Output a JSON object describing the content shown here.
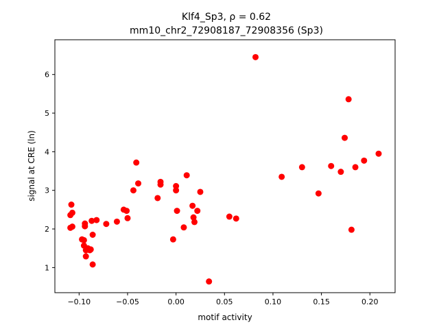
{
  "chart_data": {
    "type": "scatter",
    "title_line1": "Klf4_Sp3, ρ = 0.62",
    "title_line2": "mm10_chr2_72908187_72908356 (Sp3)",
    "xlabel": "motif activity",
    "ylabel": "signal at CRE (ln)",
    "xlim": [
      -0.125,
      0.226
    ],
    "ylim": [
      0.35,
      6.9
    ],
    "xticks": [
      -0.1,
      -0.05,
      0.0,
      0.05,
      0.1,
      0.15,
      0.2
    ],
    "xtick_labels": [
      "−0.10",
      "−0.05",
      "0.00",
      "0.05",
      "0.10",
      "0.15",
      "0.20"
    ],
    "yticks": [
      1,
      2,
      3,
      4,
      5,
      6
    ],
    "ytick_labels": [
      "1",
      "2",
      "3",
      "4",
      "5",
      "6"
    ],
    "grid": false,
    "marker_color": "#ff0000",
    "points": [
      {
        "x": 0.082,
        "y": 6.45
      },
      {
        "x": 0.178,
        "y": 5.36
      },
      {
        "x": 0.174,
        "y": 4.36
      },
      {
        "x": 0.209,
        "y": 3.95
      },
      {
        "x": 0.194,
        "y": 3.77
      },
      {
        "x": 0.16,
        "y": 3.63
      },
      {
        "x": 0.13,
        "y": 3.6
      },
      {
        "x": 0.185,
        "y": 3.6
      },
      {
        "x": 0.17,
        "y": 3.48
      },
      {
        "x": 0.109,
        "y": 3.35
      },
      {
        "x": 0.147,
        "y": 2.92
      },
      {
        "x": 0.181,
        "y": 1.98
      },
      {
        "x": -0.041,
        "y": 3.72
      },
      {
        "x": 0.011,
        "y": 3.39
      },
      {
        "x": -0.016,
        "y": 3.22
      },
      {
        "x": -0.039,
        "y": 3.18
      },
      {
        "x": -0.016,
        "y": 3.15
      },
      {
        "x": 0.0,
        "y": 3.11
      },
      {
        "x": 0.0,
        "y": 3.0
      },
      {
        "x": -0.044,
        "y": 3.0
      },
      {
        "x": 0.025,
        "y": 2.96
      },
      {
        "x": -0.019,
        "y": 2.8
      },
      {
        "x": 0.017,
        "y": 2.6
      },
      {
        "x": -0.054,
        "y": 2.5
      },
      {
        "x": -0.051,
        "y": 2.47
      },
      {
        "x": 0.001,
        "y": 2.47
      },
      {
        "x": 0.022,
        "y": 2.47
      },
      {
        "x": -0.108,
        "y": 2.63
      },
      {
        "x": -0.107,
        "y": 2.42
      },
      {
        "x": -0.109,
        "y": 2.36
      },
      {
        "x": 0.055,
        "y": 2.32
      },
      {
        "x": 0.018,
        "y": 2.3
      },
      {
        "x": 0.062,
        "y": 2.27
      },
      {
        "x": -0.05,
        "y": 2.28
      },
      {
        "x": -0.082,
        "y": 2.23
      },
      {
        "x": -0.087,
        "y": 2.21
      },
      {
        "x": -0.061,
        "y": 2.19
      },
      {
        "x": 0.019,
        "y": 2.18
      },
      {
        "x": -0.094,
        "y": 2.14
      },
      {
        "x": -0.072,
        "y": 2.13
      },
      {
        "x": -0.094,
        "y": 2.07
      },
      {
        "x": -0.107,
        "y": 2.06
      },
      {
        "x": -0.109,
        "y": 2.03
      },
      {
        "x": 0.008,
        "y": 2.04
      },
      {
        "x": -0.086,
        "y": 1.85
      },
      {
        "x": -0.003,
        "y": 1.73
      },
      {
        "x": -0.097,
        "y": 1.73
      },
      {
        "x": -0.095,
        "y": 1.71
      },
      {
        "x": -0.095,
        "y": 1.57
      },
      {
        "x": -0.091,
        "y": 1.5
      },
      {
        "x": -0.088,
        "y": 1.47
      },
      {
        "x": -0.089,
        "y": 1.45
      },
      {
        "x": -0.093,
        "y": 1.45
      },
      {
        "x": -0.093,
        "y": 1.29
      },
      {
        "x": -0.086,
        "y": 1.08
      },
      {
        "x": 0.034,
        "y": 0.64
      }
    ]
  }
}
